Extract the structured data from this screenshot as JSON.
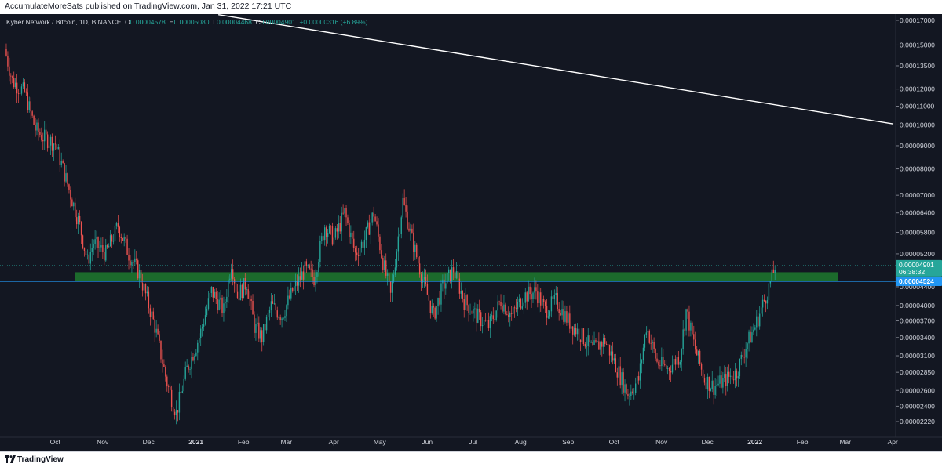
{
  "header": {
    "publish_text": "AccumulateMoreSats published on TradingView.com, Jan 31, 2022 17:21 UTC"
  },
  "footer": {
    "brand": "TradingView"
  },
  "symbol_bar": {
    "name": "Kyber Network / Bitcoin, 1D, BINANCE",
    "o_label": "O",
    "o_value": "0.00004578",
    "h_label": "H",
    "h_value": "0.00005080",
    "l_label": "L",
    "l_value": "0.00004468",
    "c_label": "C",
    "c_value": "0.00004901",
    "change": "+0.00000316 (+6.89%)"
  },
  "colors": {
    "up": "#26a69a",
    "down": "#ef5350",
    "zone": "#1e7a2e",
    "hline": "#2196f3",
    "trendline": "#ffffff",
    "price_tag": "#26a69a"
  },
  "price_tag": {
    "value": "0.00004901",
    "countdown": "06:38:32"
  },
  "support_tag": {
    "value": "0.00004524"
  },
  "chart_data": {
    "type": "candlestick",
    "y_scale": "log",
    "ylim": [
      2.13e-05,
      1.81e-05
    ],
    "y_ticks": [
      "0.00017000",
      "0.00015000",
      "0.00013500",
      "0.00012000",
      "0.00011000",
      "0.00010000",
      "0.00009000",
      "0.00008000",
      "0.00007000",
      "0.00006400",
      "0.00005800",
      "0.00005200",
      "0.00004400",
      "0.00004000",
      "0.00003700",
      "0.00003400",
      "0.00003100",
      "0.00002850",
      "0.00002600",
      "0.00002400",
      "0.00002220"
    ],
    "x_ticks": [
      "Oct",
      "Nov",
      "Dec",
      "2021",
      "Feb",
      "Mar",
      "Apr",
      "May",
      "Jun",
      "Jul",
      "Aug",
      "Sep",
      "Oct",
      "Nov",
      "Dec",
      "2022",
      "Feb",
      "Mar",
      "Apr"
    ],
    "horizontal_line": 4.524e-05,
    "support_zone": [
      4.524e-05,
      4.68e-05
    ],
    "trendline": [
      {
        "x": "2021-02-01",
        "y": 0.000175
      },
      {
        "x": "2022-03-20",
        "y": 0.0001005
      }
    ],
    "ohlc_anchors": [
      [
        "2020-09-15",
        0.000147
      ],
      [
        "2020-09-20",
        0.000125
      ],
      [
        "2020-09-28",
        0.000118
      ],
      [
        "2020-10-05",
        9.8e-05
      ],
      [
        "2020-10-10",
        9.4e-05
      ],
      [
        "2020-10-18",
        9.1e-05
      ],
      [
        "2020-10-25",
        7.6e-05
      ],
      [
        "2020-11-03",
        6e-05
      ],
      [
        "2020-11-08",
        5e-05
      ],
      [
        "2020-11-12",
        5.5e-05
      ],
      [
        "2020-11-20",
        5.2e-05
      ],
      [
        "2020-11-28",
        6e-05
      ],
      [
        "2020-12-05",
        5.2e-05
      ],
      [
        "2020-12-12",
        4.7e-05
      ],
      [
        "2020-12-22",
        3.6e-05
      ],
      [
        "2020-12-30",
        2.7e-05
      ],
      [
        "2021-01-05",
        2.32e-05
      ],
      [
        "2021-01-12",
        2.9e-05
      ],
      [
        "2021-01-20",
        3.4e-05
      ],
      [
        "2021-01-28",
        4.3e-05
      ],
      [
        "2021-02-05",
        3.9e-05
      ],
      [
        "2021-02-10",
        5e-05
      ],
      [
        "2021-02-14",
        4.2e-05
      ],
      [
        "2021-02-20",
        4.5e-05
      ],
      [
        "2021-02-25",
        3.6e-05
      ],
      [
        "2021-03-02",
        3.4e-05
      ],
      [
        "2021-03-08",
        4e-05
      ],
      [
        "2021-03-15",
        3.8e-05
      ],
      [
        "2021-03-22",
        4.3e-05
      ],
      [
        "2021-03-30",
        4.8e-05
      ],
      [
        "2021-04-05",
        4.6e-05
      ],
      [
        "2021-04-12",
        6e-05
      ],
      [
        "2021-04-18",
        5.6e-05
      ],
      [
        "2021-04-25",
        6.4e-05
      ],
      [
        "2021-05-02",
        5.2e-05
      ],
      [
        "2021-05-08",
        5.6e-05
      ],
      [
        "2021-05-14",
        6.4e-05
      ],
      [
        "2021-05-20",
        5e-05
      ],
      [
        "2021-05-25",
        4.2e-05
      ],
      [
        "2021-06-02",
        6.8e-05
      ],
      [
        "2021-06-08",
        5.6e-05
      ],
      [
        "2021-06-14",
        4.7e-05
      ],
      [
        "2021-06-22",
        3.8e-05
      ],
      [
        "2021-06-28",
        4.4e-05
      ],
      [
        "2021-07-05",
        4.8e-05
      ],
      [
        "2021-07-12",
        4.1e-05
      ],
      [
        "2021-07-20",
        3.8e-05
      ],
      [
        "2021-07-28",
        3.6e-05
      ],
      [
        "2021-08-05",
        4.1e-05
      ],
      [
        "2021-08-12",
        3.8e-05
      ],
      [
        "2021-08-20",
        4.2e-05
      ],
      [
        "2021-08-28",
        4.3e-05
      ],
      [
        "2021-09-03",
        3.9e-05
      ],
      [
        "2021-09-10",
        4.1e-05
      ],
      [
        "2021-09-18",
        3.7e-05
      ],
      [
        "2021-09-26",
        3.45e-05
      ],
      [
        "2021-10-04",
        3.2e-05
      ],
      [
        "2021-10-12",
        3.35e-05
      ],
      [
        "2021-10-20",
        2.9e-05
      ],
      [
        "2021-10-27",
        2.55e-05
      ],
      [
        "2021-11-03",
        2.75e-05
      ],
      [
        "2021-11-08",
        3.6e-05
      ],
      [
        "2021-11-15",
        3e-05
      ],
      [
        "2021-11-22",
        2.9e-05
      ],
      [
        "2021-11-30",
        3.1e-05
      ],
      [
        "2021-12-04",
        3.9e-05
      ],
      [
        "2021-12-10",
        3.2e-05
      ],
      [
        "2021-12-16",
        2.75e-05
      ],
      [
        "2021-12-22",
        2.65e-05
      ],
      [
        "2021-12-30",
        2.75e-05
      ],
      [
        "2022-01-06",
        2.85e-05
      ],
      [
        "2022-01-12",
        3.25e-05
      ],
      [
        "2022-01-18",
        3.6e-05
      ],
      [
        "2022-01-24",
        4.1e-05
      ],
      [
        "2022-01-29",
        4.6e-05
      ],
      [
        "2022-01-31",
        4.9e-05
      ]
    ]
  }
}
